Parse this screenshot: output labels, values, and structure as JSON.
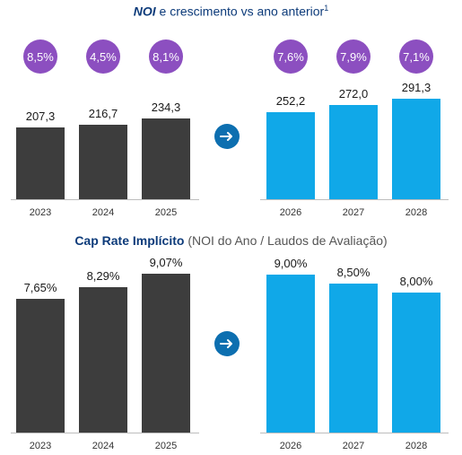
{
  "chart_data": [
    {
      "type": "bar",
      "title_emph": "NOI",
      "title_rest": " e crescimento vs ano anterior",
      "title_sup": "1",
      "categories": [
        "2023",
        "2024",
        "2025",
        "2026",
        "2027",
        "2028"
      ],
      "values": [
        207.3,
        216.7,
        234.3,
        252.2,
        272.0,
        291.3
      ],
      "value_labels": [
        "207,3",
        "216,7",
        "234,3",
        "252,2",
        "272,0",
        "291,3"
      ],
      "growth_labels": [
        "8,5%",
        "4,5%",
        "8,1%",
        "7,6%",
        "7,9%",
        "7,1%"
      ],
      "forecast_from_index": 3,
      "ylim": [
        0,
        291.3
      ]
    },
    {
      "type": "bar",
      "title_main": "Cap Rate Implícito",
      "title_sub": " (NOI do Ano / Laudos de Avaliação)",
      "categories": [
        "2023",
        "2024",
        "2025",
        "2026",
        "2027",
        "2028"
      ],
      "values": [
        7.65,
        8.29,
        9.07,
        9.0,
        8.5,
        8.0
      ],
      "value_labels": [
        "7,65%",
        "8,29%",
        "9,07%",
        "9,00%",
        "8,50%",
        "8,00%"
      ],
      "forecast_from_index": 3,
      "ylim": [
        0,
        9.07
      ]
    }
  ],
  "colors": {
    "past": "#3d3d3d",
    "forecast": "#10a8e8",
    "badge": "#8c4fc0",
    "arrow": "#0d6fb0",
    "title": "#0d3b7a"
  },
  "icons": {
    "transition": "arrow-right-icon"
  }
}
